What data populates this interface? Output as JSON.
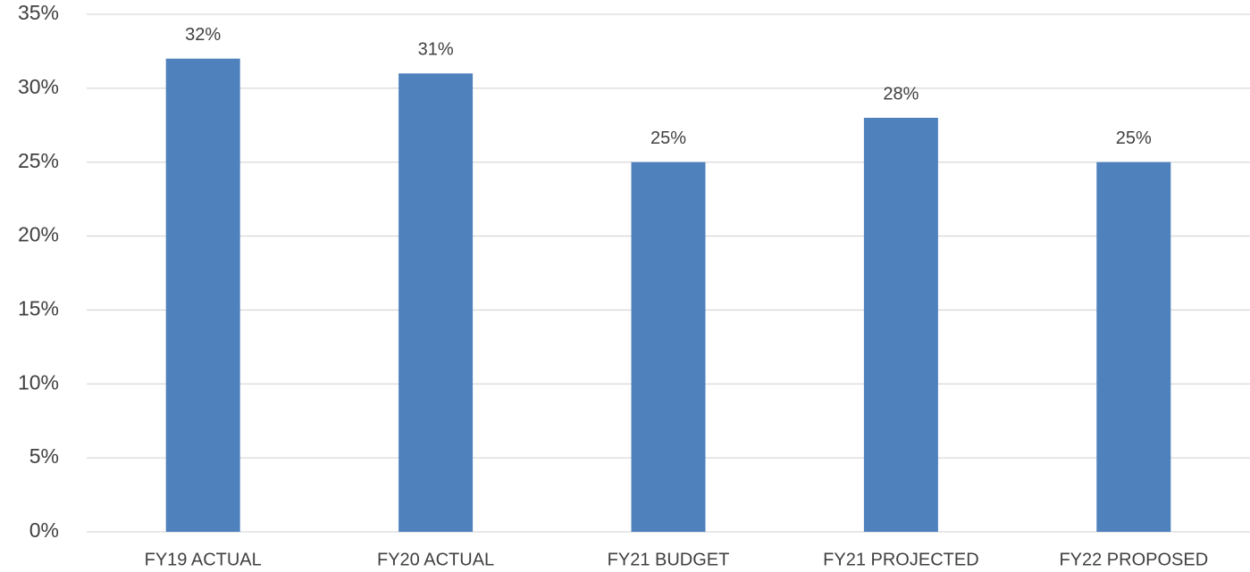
{
  "chart_data": {
    "type": "bar",
    "categories": [
      "FY19 ACTUAL",
      "FY20 ACTUAL",
      "FY21 BUDGET",
      "FY21 PROJECTED",
      "FY22 PROPOSED"
    ],
    "values": [
      32,
      31,
      25,
      28,
      25
    ],
    "value_labels": [
      "32%",
      "31%",
      "25%",
      "28%",
      "25%"
    ],
    "color": "#4f81bd",
    "ylim": [
      0,
      35
    ],
    "yticks": [
      {
        "value": 0,
        "label": "0%"
      },
      {
        "value": 5,
        "label": "5%"
      },
      {
        "value": 10,
        "label": "10%"
      },
      {
        "value": 15,
        "label": "15%"
      },
      {
        "value": 20,
        "label": "20%"
      },
      {
        "value": 25,
        "label": "25%"
      },
      {
        "value": 30,
        "label": "30%"
      },
      {
        "value": 35,
        "label": "35%"
      }
    ],
    "grid": true
  }
}
